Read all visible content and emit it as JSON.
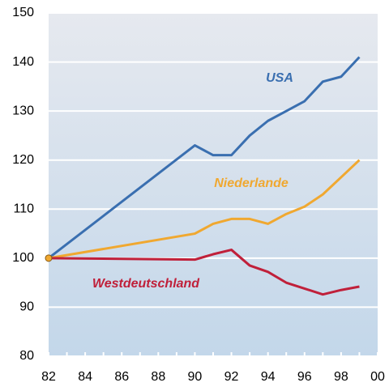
{
  "chart_data": {
    "type": "line",
    "x": [
      82,
      90,
      91,
      92,
      93,
      94,
      95,
      96,
      97,
      98,
      99
    ],
    "series": [
      {
        "name": "USA",
        "color": "#3a6fb0",
        "values": [
          100,
          123,
          121,
          121,
          125,
          128,
          130,
          132,
          136,
          137,
          141
        ]
      },
      {
        "name": "Niederlande",
        "color": "#f0a830",
        "values": [
          100,
          105,
          107,
          108,
          108,
          107,
          109,
          110.5,
          113,
          116.5,
          120
        ]
      },
      {
        "name": "Westdeutschland",
        "color": "#c0203a",
        "values": [
          100,
          99.7,
          100.8,
          101.7,
          98.5,
          97.2,
          95,
          93.8,
          92.6,
          93.5,
          94.2
        ]
      }
    ],
    "xlim": [
      82,
      100
    ],
    "xticks": [
      82,
      84,
      86,
      88,
      90,
      92,
      94,
      96,
      98,
      {
        "value": 100,
        "label": "00"
      }
    ],
    "ylim": [
      80,
      150
    ],
    "yticks": [
      80,
      90,
      100,
      110,
      120,
      130,
      140,
      150
    ],
    "grid": true
  }
}
